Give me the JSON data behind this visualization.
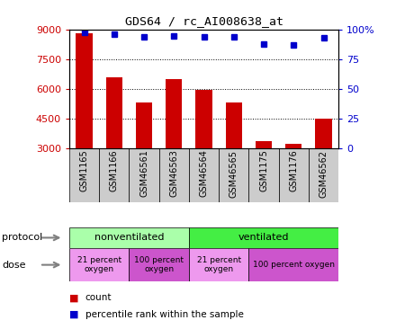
{
  "title": "GDS64 / rc_AI008638_at",
  "samples": [
    "GSM1165",
    "GSM1166",
    "GSM46561",
    "GSM46563",
    "GSM46564",
    "GSM46565",
    "GSM1175",
    "GSM1176",
    "GSM46562"
  ],
  "counts": [
    8800,
    6600,
    5300,
    6500,
    5950,
    5300,
    3350,
    3200,
    4500
  ],
  "percentiles": [
    98,
    96,
    94,
    95,
    94,
    94,
    88,
    87,
    93
  ],
  "ylim_left": [
    3000,
    9000
  ],
  "ylim_right": [
    0,
    100
  ],
  "yticks_left": [
    3000,
    4500,
    6000,
    7500,
    9000
  ],
  "yticks_right": [
    0,
    25,
    50,
    75,
    100
  ],
  "ytick_right_labels": [
    "0",
    "25",
    "50",
    "75",
    "100%"
  ],
  "bar_color": "#cc0000",
  "dot_color": "#0000cc",
  "protocol_groups": [
    {
      "label": "nonventilated",
      "start": 0,
      "end": 4,
      "color": "#aaffaa"
    },
    {
      "label": "ventilated",
      "start": 4,
      "end": 9,
      "color": "#44ee44"
    }
  ],
  "dose_groups": [
    {
      "label": "21 percent\noxygen",
      "start": 0,
      "end": 2,
      "color": "#ee99ee"
    },
    {
      "label": "100 percent\noxygen",
      "start": 2,
      "end": 4,
      "color": "#cc55cc"
    },
    {
      "label": "21 percent\noxygen",
      "start": 4,
      "end": 6,
      "color": "#ee99ee"
    },
    {
      "label": "100 percent oxygen",
      "start": 6,
      "end": 9,
      "color": "#cc55cc"
    }
  ],
  "legend_items": [
    {
      "label": "count",
      "color": "#cc0000"
    },
    {
      "label": "percentile rank within the sample",
      "color": "#0000cc"
    }
  ],
  "left_color": "#cc0000",
  "right_color": "#0000cc",
  "sample_bg": "#cccccc",
  "bar_width": 0.55
}
